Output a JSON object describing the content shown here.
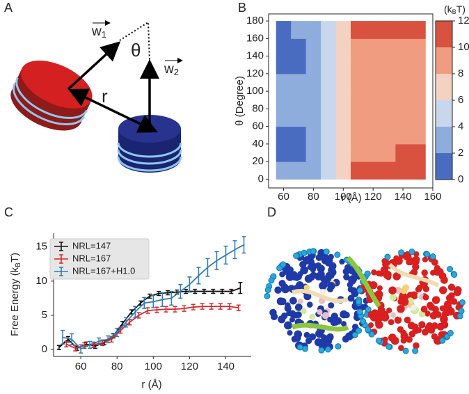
{
  "panel_labels": [
    "A",
    "B",
    "C",
    "D"
  ],
  "diagram": {
    "w1": [
      "w",
      "1"
    ],
    "theta": "θ",
    "w2": [
      "w",
      "2"
    ],
    "r": "r"
  },
  "chart_data": [
    {
      "type": "contour",
      "xlabel": "r (Å)",
      "ylabel": "θ (Degree)",
      "colorbar_label": [
        "(k",
        "B",
        "T)"
      ],
      "x": [
        60,
        70,
        80,
        90,
        100,
        110,
        120,
        130,
        140,
        150
      ],
      "y": [
        10,
        30,
        50,
        70,
        90,
        110,
        130,
        150,
        170
      ],
      "z": [
        [
          3,
          3,
          3.5,
          5,
          7,
          10.5,
          10.5,
          10.5,
          10.5,
          10.5
        ],
        [
          1.5,
          1.5,
          2.5,
          4.5,
          7,
          9,
          9,
          9,
          10.5,
          10.5
        ],
        [
          1.5,
          1.5,
          2.5,
          4.5,
          7,
          9,
          9,
          9,
          9,
          9
        ],
        [
          3,
          2.5,
          3,
          4.5,
          7,
          9,
          9,
          9,
          9,
          9
        ],
        [
          3,
          3,
          3.5,
          5,
          7,
          9,
          9,
          9,
          9,
          9
        ],
        [
          3,
          3,
          3.5,
          5,
          7,
          9,
          9,
          9,
          9,
          9
        ],
        [
          1.5,
          1.5,
          3,
          5,
          7,
          9,
          9,
          9,
          9,
          9
        ],
        [
          1.5,
          1.5,
          3,
          5,
          7,
          9,
          9,
          9,
          9,
          9
        ],
        [
          1.5,
          3,
          3,
          5,
          7,
          10.5,
          10.5,
          10.5,
          10.5,
          10.5
        ]
      ],
      "levels": [
        0,
        2,
        4,
        6,
        8,
        10,
        12
      ],
      "colors": [
        "#4a6cc0",
        "#8eaddd",
        "#c8d7ee",
        "#f3d2c2",
        "#ef9c80",
        "#d9523f"
      ],
      "xlim": [
        50,
        160
      ],
      "ylim": [
        -10,
        188
      ],
      "xticks": [
        60,
        80,
        100,
        120,
        140,
        160
      ],
      "yticks": [
        0,
        20,
        40,
        60,
        80,
        100,
        120,
        140,
        160,
        180
      ]
    },
    {
      "type": "line",
      "xlabel": "r (Å)",
      "ylabel": [
        "Free Energy (k",
        "B",
        "T)"
      ],
      "legend": "upper left",
      "xlim": [
        45,
        154
      ],
      "ylim": [
        -1,
        17
      ],
      "xticks": [
        60,
        80,
        100,
        120,
        140
      ],
      "yticks": [
        0,
        5,
        10,
        15
      ],
      "series": [
        {
          "name": "NRL=147",
          "color": "#111111",
          "x": [
            48,
            53,
            58,
            63,
            68,
            73,
            78,
            83,
            88,
            93,
            98,
            103,
            108,
            113,
            118,
            123,
            128,
            133,
            138,
            143,
            148
          ],
          "values": [
            0.3,
            1.5,
            0.2,
            0.8,
            0.5,
            1.0,
            2.0,
            3.8,
            5.5,
            6.8,
            7.8,
            8.2,
            8.3,
            8.4,
            8.5,
            8.5,
            8.5,
            8.5,
            8.5,
            8.5,
            9.0
          ],
          "errors": [
            0.3,
            0.4,
            0.3,
            0.3,
            0.3,
            0.3,
            0.3,
            0.3,
            0.3,
            0.3,
            0.3,
            0.3,
            0.3,
            0.3,
            0.3,
            0.3,
            0.3,
            0.3,
            0.3,
            0.3,
            0.8
          ]
        },
        {
          "name": "NRL=167",
          "color": "#d62728",
          "x": [
            52,
            57,
            62,
            67,
            72,
            77,
            82,
            87,
            92,
            97,
            102,
            107,
            112,
            117,
            122,
            127,
            132,
            137,
            142,
            147
          ],
          "values": [
            0.8,
            0.2,
            0.6,
            0.7,
            1.0,
            1.5,
            2.8,
            4.0,
            5.0,
            5.7,
            5.8,
            5.9,
            5.9,
            6.0,
            6.2,
            6.3,
            6.3,
            6.3,
            6.3,
            6.1
          ],
          "errors": [
            0.4,
            0.4,
            0.4,
            0.4,
            0.4,
            0.4,
            0.4,
            0.4,
            0.4,
            0.4,
            0.4,
            0.4,
            0.4,
            0.4,
            0.4,
            0.4,
            0.4,
            0.4,
            0.4,
            0.4
          ]
        },
        {
          "name": "NRL=167+H1.0",
          "color": "#2b7bba",
          "x": [
            50,
            55,
            60,
            65,
            70,
            75,
            80,
            85,
            90,
            95,
            100,
            105,
            110,
            115,
            120,
            125,
            130,
            135,
            140,
            145,
            150
          ],
          "values": [
            1.8,
            1.5,
            0.1,
            0.7,
            1.2,
            1.5,
            2.5,
            4.0,
            5.5,
            6.8,
            7.0,
            7.3,
            7.5,
            8.5,
            9.5,
            10.8,
            12.0,
            13.0,
            13.8,
            14.6,
            15.3
          ],
          "errors": [
            1.0,
            0.8,
            0.6,
            0.5,
            0.5,
            0.5,
            0.6,
            0.7,
            0.8,
            0.8,
            0.9,
            1.0,
            1.0,
            1.0,
            1.1,
            1.2,
            1.3,
            1.3,
            1.3,
            1.3,
            1.2
          ]
        }
      ]
    }
  ]
}
